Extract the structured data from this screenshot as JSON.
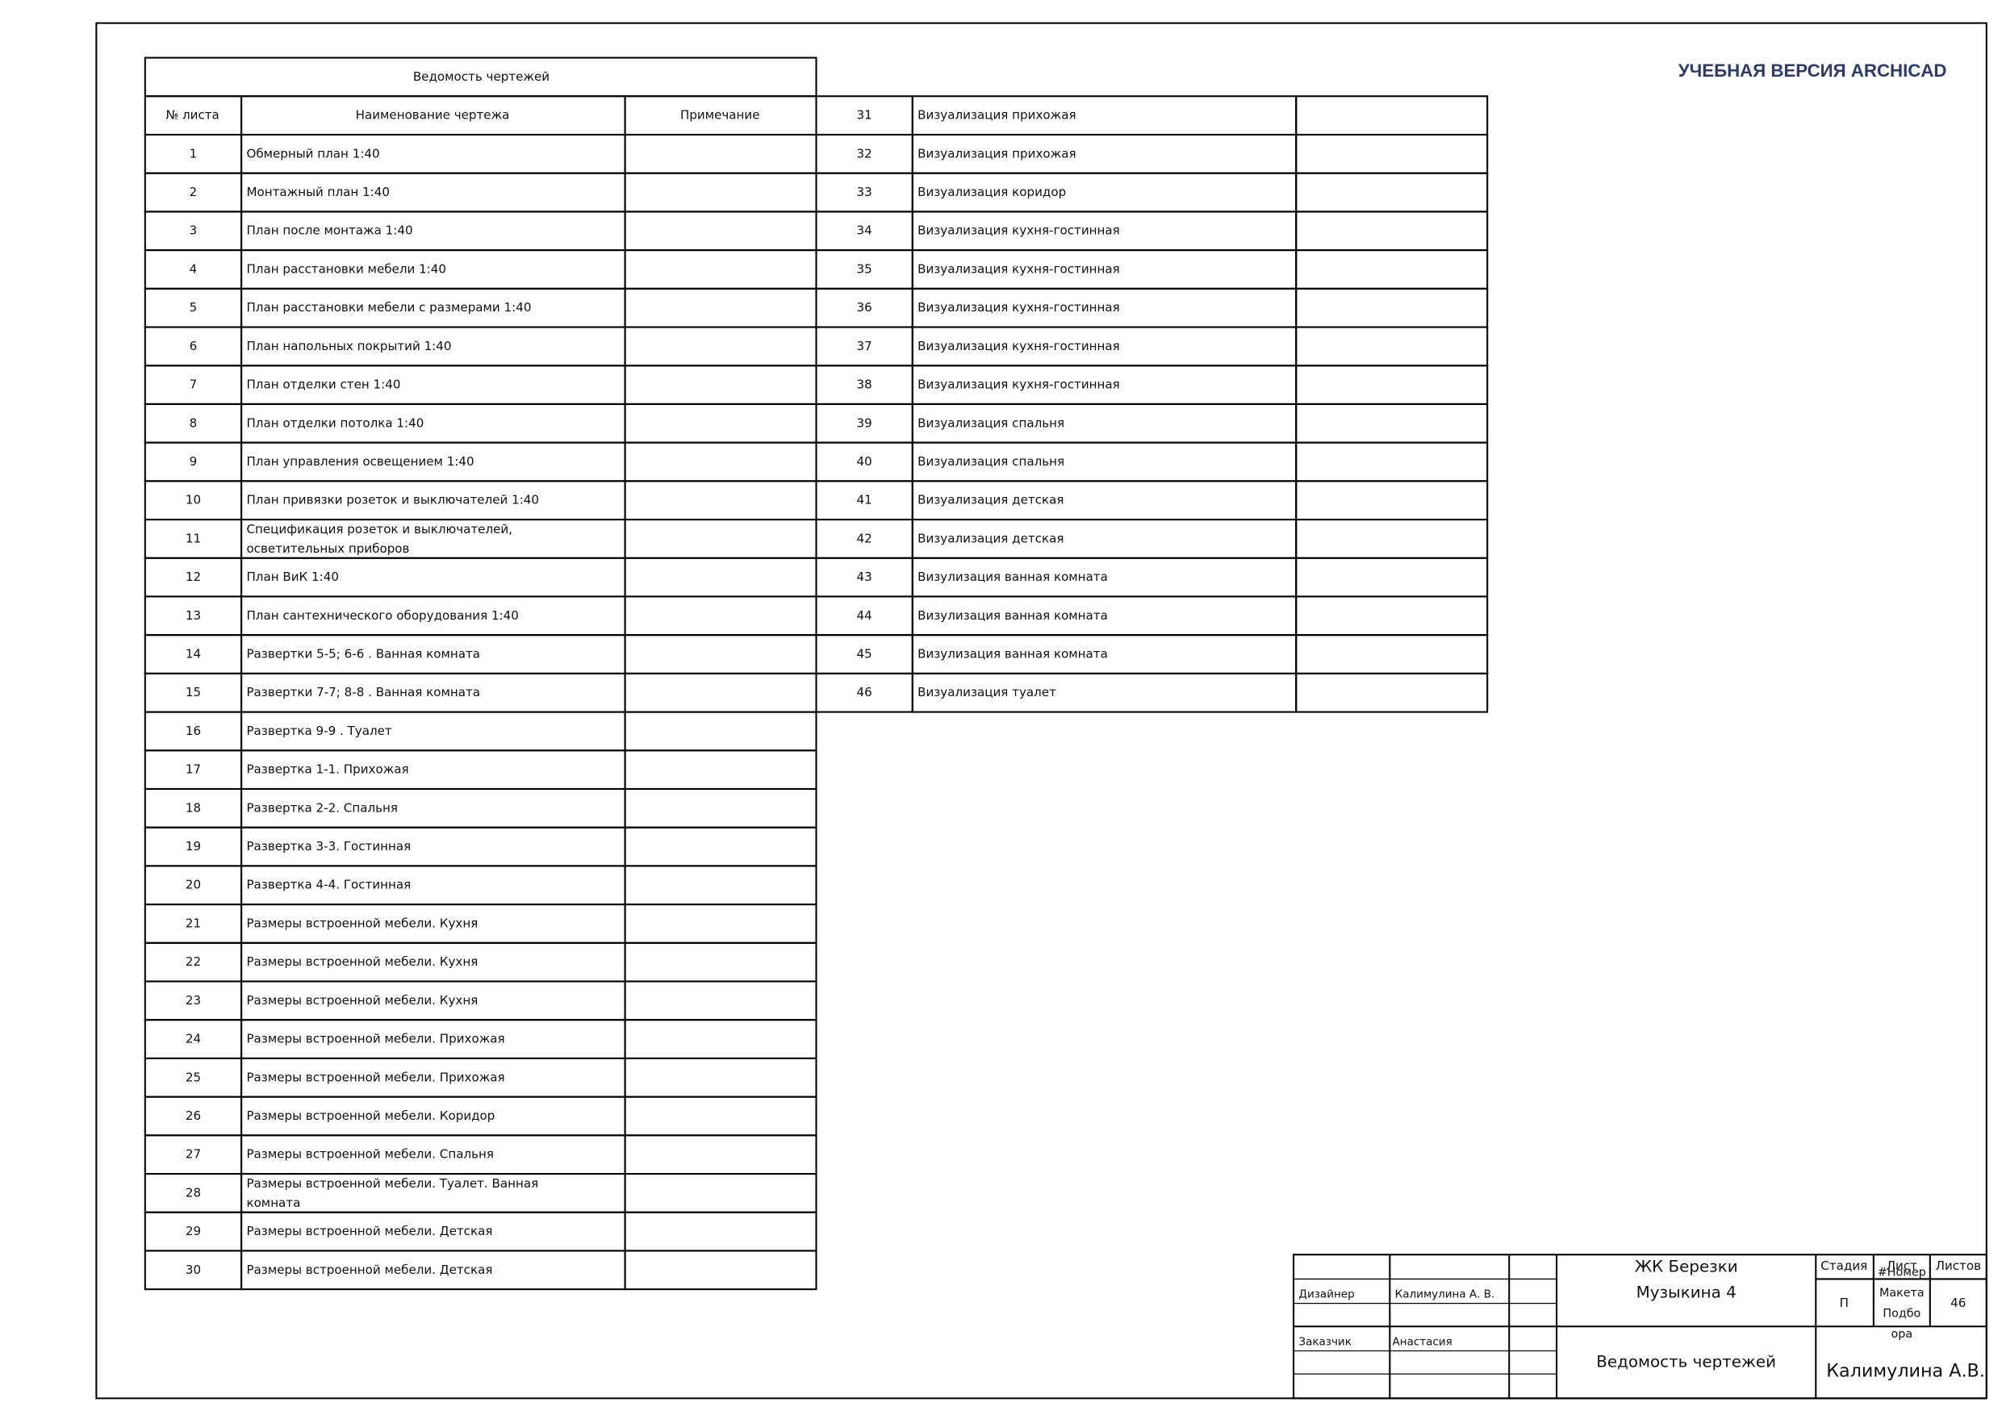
{
  "watermark": "УЧЕБНАЯ ВЕРСИЯ ARCHICAD",
  "table": {
    "title": "Ведомость чертежей",
    "headers": [
      "№ листа",
      "Наименование чертежа",
      "Примечание"
    ],
    "rows": [
      {
        "number": 1,
        "name": "Обмерный план 1:40"
      },
      {
        "number": 2,
        "name": "Монтажный план 1:40"
      },
      {
        "number": 3,
        "name": "План после монтажа 1:40"
      },
      {
        "number": 4,
        "name": "План расстановки мебели 1:40"
      },
      {
        "number": 5,
        "name": "План расстановки мебели с размерами 1:40"
      },
      {
        "number": 6,
        "name": "План напольных покрытий 1:40"
      },
      {
        "number": 7,
        "name": "План отделки стен 1:40"
      },
      {
        "number": 8,
        "name": "План отделки потолка 1:40"
      },
      {
        "number": 9,
        "name": "План управления освещением 1:40"
      },
      {
        "number": 10,
        "name": "План привязки розеток и выключателей 1:40"
      },
      {
        "number": 11,
        "name": [
          "Спецификация розеток и выключателей,",
          "осветительных приборов"
        ]
      },
      {
        "number": 12,
        "name": "План ВиК 1:40"
      },
      {
        "number": 13,
        "name": "План сантехнического оборудования 1:40"
      },
      {
        "number": 14,
        "name": "Развертки 5-5; 6-6 . Ванная комната"
      },
      {
        "number": 15,
        "name": "Развертки 7-7; 8-8 . Ванная комната"
      },
      {
        "number": 16,
        "name": "Развертка 9-9 . Туалет"
      },
      {
        "number": 17,
        "name": "Развертка 1-1. Прихожая"
      },
      {
        "number": 18,
        "name": "Развертка 2-2. Спальня"
      },
      {
        "number": 19,
        "name": "Развертка 3-3. Гостинная"
      },
      {
        "number": 20,
        "name": "Развертка 4-4. Гостинная"
      },
      {
        "number": 21,
        "name": "Размеры встроенной мебели. Кухня"
      },
      {
        "number": 22,
        "name": "Размеры встроенной мебели. Кухня"
      },
      {
        "number": 23,
        "name": "Размеры встроенной мебели. Кухня"
      },
      {
        "number": 24,
        "name": "Размеры встроенной мебели. Прихожая"
      },
      {
        "number": 25,
        "name": "Размеры встроенной мебели. Прихожая"
      },
      {
        "number": 26,
        "name": "Размеры встроенной мебели. Коридор"
      },
      {
        "number": 27,
        "name": "Размеры встроенной мебели. Спальня"
      },
      {
        "number": 28,
        "name": [
          "Размеры встроенной мебели. Туалет. Ванная",
          "комната"
        ]
      },
      {
        "number": 29,
        "name": "Размеры встроенной мебели. Детская"
      },
      {
        "number": 30,
        "name": "Размеры встроенной мебели. Детская"
      },
      {
        "number": 31,
        "name": "Визуализация прихожая"
      },
      {
        "number": 32,
        "name": "Визуализация прихожая"
      },
      {
        "number": 33,
        "name": "Визуализация коридор"
      },
      {
        "number": 34,
        "name": "Визуализация кухня-гостинная"
      },
      {
        "number": 35,
        "name": "Визуализация кухня-гостинная"
      },
      {
        "number": 36,
        "name": "Визуализация кухня-гостинная"
      },
      {
        "number": 37,
        "name": "Визуализация кухня-гостинная"
      },
      {
        "number": 38,
        "name": "Визуализация кухня-гостинная"
      },
      {
        "number": 39,
        "name": "Визуализация спальня"
      },
      {
        "number": 40,
        "name": "Визуализация спальня"
      },
      {
        "number": 41,
        "name": "Визуализация детская"
      },
      {
        "number": 42,
        "name": "Визуализация детская"
      },
      {
        "number": 43,
        "name": "Визулизация ванная комната"
      },
      {
        "number": 44,
        "name": "Визулизация ванная комната"
      },
      {
        "number": 45,
        "name": "Визулизация ванная комната"
      },
      {
        "number": 46,
        "name": "Визуализация туалет"
      }
    ]
  },
  "stamp": {
    "designer_label": "Дизайнер",
    "designer": "Калимулина А. В.",
    "client_label": "Заказчик",
    "client": "Анастасия",
    "project": [
      "ЖК Березки",
      "Музыкина 4"
    ],
    "sheet_title": "Ведомость чертежей",
    "stage_label": "Стадия",
    "sheet_label": "Лист",
    "sheets_label": "Листов",
    "stage": "П",
    "sheet": [
      "#Номер",
      "Макета",
      "Подбо",
      "ора"
    ],
    "sheets": 46,
    "author": "Калимулина А.В."
  }
}
